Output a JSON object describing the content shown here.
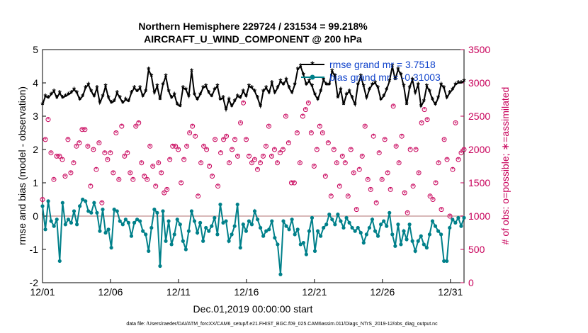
{
  "colors": {
    "rmse": "#000000",
    "bias": "#00808a",
    "obs": "#c8005a",
    "legend_text": "#1144cc",
    "zero_line": "#d8b8b8"
  },
  "chart_data": {
    "type": "line",
    "title_line1": "Northern Hemisphere 229724 / 231534 = 99.218%",
    "title_line2": "AIRCRAFT_U_WIND_COMPONENT @ 200 hPa",
    "xlabel": "Dec.01,2019 00:00:00 start",
    "ylabel": "rmse and bias (model - observation)",
    "y2label": "# of obs: o=possible; ∗=assimilated",
    "xlim": [
      0,
      31
    ],
    "ylim": [
      -2,
      5
    ],
    "y2lim": [
      0,
      3500
    ],
    "x_tick_values": [
      0,
      5,
      10,
      15,
      20,
      25,
      30
    ],
    "x_tick_labels": [
      "12/01",
      "12/06",
      "12/11",
      "12/16",
      "12/21",
      "12/26",
      "12/31"
    ],
    "y_ticks": [
      "-2",
      "-1",
      "0",
      "1",
      "2",
      "3",
      "4",
      "5"
    ],
    "y2_ticks": [
      "0",
      "500",
      "1000",
      "1500",
      "2000",
      "2500",
      "3000",
      "3500"
    ],
    "legend": {
      "placement": "top-right",
      "rmse_label": "rmse grand mr = 3.7518",
      "bias_label": "bias grand mr = -0.31003"
    },
    "series": [
      {
        "name": "rmse",
        "values": [
          3.35,
          3.6,
          3.55,
          3.65,
          3.75,
          3.55,
          3.7,
          3.55,
          3.6,
          3.65,
          3.7,
          3.8,
          3.7,
          3.5,
          3.6,
          3.85,
          3.95,
          3.75,
          3.6,
          3.85,
          3.4,
          3.6,
          3.9,
          3.55,
          3.4,
          3.45,
          3.7,
          3.55,
          3.4,
          3.5,
          3.45,
          3.7,
          3.85,
          3.75,
          3.85,
          3.6,
          3.75,
          4.4,
          4.2,
          3.7,
          3.9,
          3.5,
          3.95,
          4.2,
          3.75,
          3.55,
          3.65,
          3.35,
          3.3,
          3.85,
          3.8,
          3.6,
          4.35,
          3.65,
          3.5,
          3.65,
          3.85,
          3.9,
          3.7,
          3.6,
          3.8,
          3.9,
          3.5,
          3.55,
          3.2,
          3.5,
          3.3,
          3.45,
          3.6,
          3.55,
          3.75,
          3.6,
          3.9,
          3.85,
          3.75,
          3.55,
          3.3,
          3.75,
          3.85,
          3.7,
          4.0,
          3.7,
          3.85,
          4.05,
          3.95,
          4.1,
          3.85,
          3.7,
          3.95,
          4.4,
          4.5,
          4.25,
          3.95,
          4.05,
          3.9,
          3.65,
          3.5,
          3.75,
          4.1,
          3.95,
          3.95,
          4.35,
          4.2,
          3.55,
          3.8,
          3.35,
          3.65,
          3.75,
          3.55,
          3.35,
          3.95,
          4.2,
          3.9,
          3.55,
          3.8,
          3.95,
          4.0,
          3.85,
          3.5,
          3.6,
          3.8,
          4.05,
          4.5,
          4.1,
          4.4,
          4.25,
          3.9,
          3.35,
          3.85,
          4.1,
          3.7,
          3.95,
          3.3,
          3.45,
          3.9,
          3.75,
          3.5,
          3.35,
          3.55,
          3.95,
          3.85,
          3.55,
          3.7,
          3.8,
          3.95,
          4.0,
          4.0,
          4.05
        ]
      },
      {
        "name": "bias",
        "values": [
          0.3,
          -0.4,
          0.45,
          -0.15,
          -0.3,
          -0.1,
          -1.35,
          0.4,
          -0.25,
          -0.1,
          -0.2,
          0.15,
          -0.25,
          0.3,
          0.5,
          0.45,
          0.15,
          0.1,
          0.4,
          0.1,
          -0.45,
          0.2,
          -0.5,
          -0.4,
          -0.95,
          0.2,
          0.15,
          -0.15,
          -0.25,
          -0.1,
          -0.2,
          -0.6,
          -0.2,
          -0.1,
          -0.15,
          -0.45,
          -0.55,
          -1.05,
          -0.35,
          0.2,
          0.1,
          -1.5,
          0.15,
          -0.75,
          -0.15,
          -0.85,
          -0.55,
          -0.1,
          -0.25,
          -0.75,
          -1.0,
          -0.45,
          0.15,
          -0.15,
          -0.5,
          -0.2,
          -0.75,
          -0.35,
          -0.45,
          -0.3,
          -0.05,
          -0.55,
          0.35,
          -0.2,
          -0.15,
          -0.75,
          -0.55,
          -0.3,
          0.35,
          -0.95,
          -0.25,
          -0.45,
          -0.15,
          -0.25,
          0.15,
          -0.1,
          -0.35,
          -0.6,
          -0.45,
          -0.4,
          -0.15,
          -0.65,
          -0.85,
          -1.75,
          -0.15,
          -0.3,
          -0.4,
          -0.1,
          -0.55,
          -0.4,
          -0.85,
          -0.8,
          -1.15,
          -0.45,
          -0.05,
          -1.05,
          -0.45,
          -0.6,
          -0.35,
          -0.25,
          0.05,
          -0.1,
          -0.25,
          0.05,
          -0.15,
          -0.35,
          -0.05,
          -0.2,
          -0.35,
          -0.45,
          -0.35,
          -0.5,
          -0.8,
          -0.55,
          -0.35,
          -0.1,
          -0.45,
          -0.6,
          -0.25,
          -0.15,
          -0.3,
          0.1,
          -0.55,
          -0.9,
          -0.25,
          -0.85,
          -0.45,
          -0.7,
          -0.25,
          -0.75,
          -1.05,
          -0.75,
          -0.6,
          -0.85,
          -0.95,
          -0.55,
          -0.15,
          -0.3,
          -0.45,
          -0.55,
          -1.35,
          -1.35,
          -0.35,
          -0.1,
          -0.2,
          -0.05,
          -0.3,
          -0.05
        ]
      },
      {
        "name": "obs_possible",
        "values": [
          1250,
          2150,
          2450,
          1950,
          1550,
          1900,
          1900,
          1850,
          1600,
          2150,
          1650,
          1800,
          2050,
          2100,
          2300,
          2300,
          2050,
          1450,
          2000,
          1700,
          2100,
          1200,
          1950,
          1850,
          1950,
          1650,
          2250,
          1550,
          2350,
          1900,
          1950,
          1650,
          1550,
          2350,
          2400,
          1800,
          1600,
          1550,
          2050,
          1750,
          1450,
          1800,
          1650,
          1350,
          1400,
          1850,
          2050,
          2050,
          2000,
          1500,
          1850,
          2050,
          2250,
          2350,
          2200,
          1300,
          1800,
          2050,
          2000,
          1750,
          1600,
          2150,
          1450,
          1950,
          2150,
          2200,
          1800,
          2000,
          2150,
          1900,
          2400,
          2700,
          2150,
          1900,
          1800,
          1850,
          1700,
          1800,
          1900,
          2050,
          2350,
          1900,
          2000,
          1800,
          1950,
          2000,
          2500,
          2100,
          1500,
          1500,
          2250,
          1800,
          2500,
          2600,
          2700,
          2250,
          1750,
          2000,
          2350,
          2250,
          1600,
          2100,
          1300,
          2000,
          1800,
          1450,
          1900,
          1800,
          1300,
          2000,
          1650,
          1100,
          1700,
          1900,
          2350,
          1550,
          1400,
          2200,
          1200,
          1950,
          1550,
          2150,
          1650,
          1400,
          2650,
          2050,
          1800,
          2200,
          1350,
          1050,
          2000,
          1450,
          2000,
          1650,
          2400,
          2600,
          2450,
          1300,
          1250,
          1500,
          1800,
          1100,
          2150,
          1850,
          1000,
          1700,
          2400,
          1850,
          1950,
          2000
        ]
      },
      {
        "name": "obs_assimilated",
        "values": [
          1245,
          2150,
          2455,
          1945,
          1550,
          1900,
          1895,
          1855,
          1595,
          2155,
          1650,
          1805,
          2050,
          2100,
          2300,
          2300,
          2045,
          1455,
          1995,
          1705,
          2095,
          1200,
          1950,
          1845,
          1950,
          1650,
          2250,
          1545,
          2355,
          1900,
          1950,
          1645,
          1555,
          2345,
          2405,
          1800,
          1600,
          1550,
          2050,
          1745,
          1450,
          1795,
          1650,
          1345,
          1400,
          1850,
          2055,
          2045,
          2000,
          1505,
          1850,
          2050,
          2245,
          2350,
          2200,
          1305,
          1800,
          2050,
          2000,
          1755,
          1600,
          2145,
          1450,
          1955,
          2150,
          2195,
          1800,
          2000,
          2155,
          1900,
          2395,
          2700,
          2150,
          1905,
          1800,
          1845,
          1700,
          1805,
          1900,
          2050,
          2345,
          1900,
          2000,
          1800,
          1955,
          2000,
          2495,
          2100,
          1505,
          1500,
          2250,
          1795,
          2505,
          2600,
          2695,
          2250,
          1750,
          2005,
          2350,
          2245,
          1600,
          2100,
          1305,
          2000,
          1795,
          1450,
          1900,
          1805,
          1300,
          2000,
          1645,
          1100,
          1705,
          1900,
          2345,
          1550,
          1400,
          2205,
          1200,
          1950,
          1545,
          2150,
          1650,
          1405,
          2650,
          2045,
          1800,
          2200,
          1345,
          1050,
          2005,
          1450,
          2000,
          1645,
          2400,
          2605,
          2445,
          1300,
          1250,
          1505,
          1800,
          1100,
          2145,
          1850,
          1000,
          1705,
          2395,
          1850,
          1950,
          2000
        ]
      }
    ],
    "footer": "data file: /Users/raeder/DAI/ATM_forcXX/CAM6_setup/f.e21.FHIST_BGC.f09_025.CAM6assim.011/Diags_NTrS_2019-12/obs_diag_output.nc"
  }
}
